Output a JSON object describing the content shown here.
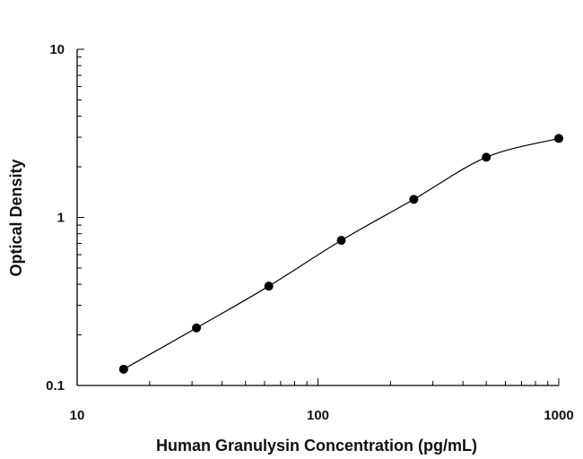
{
  "chart_data": {
    "type": "scatter",
    "title": "",
    "xlabel": "Human Granulysin Concentration (pg/mL)",
    "ylabel": "Optical Density",
    "x_scale": "log",
    "y_scale": "log",
    "xlim": [
      10,
      1000
    ],
    "ylim": [
      0.1,
      10
    ],
    "x_ticks": [
      "10",
      "100",
      "1000"
    ],
    "y_ticks": [
      "0.1",
      "1",
      "10"
    ],
    "grid": false,
    "series": [
      {
        "points": [
          {
            "x": 15.6,
            "y": 0.125
          },
          {
            "x": 31.3,
            "y": 0.22
          },
          {
            "x": 62.5,
            "y": 0.39
          },
          {
            "x": 125,
            "y": 0.73
          },
          {
            "x": 250,
            "y": 1.28
          },
          {
            "x": 500,
            "y": 2.28
          },
          {
            "x": 1000,
            "y": 2.95
          }
        ],
        "fit_line": true,
        "marker_color": "#000000"
      }
    ]
  }
}
